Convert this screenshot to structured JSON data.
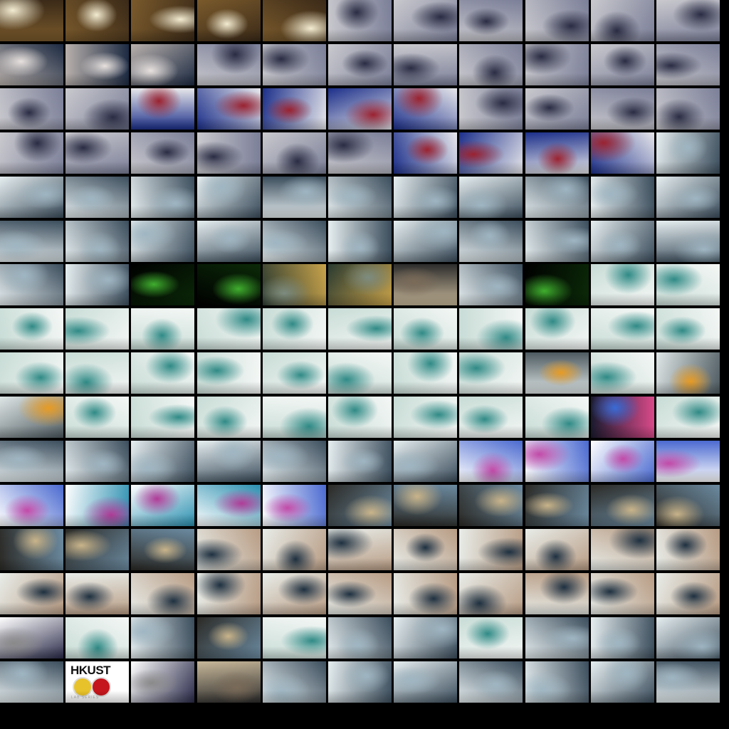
{
  "sheet": {
    "description_kind": "contact-sheet",
    "columns": 11,
    "rows": 16,
    "background": "#000000",
    "scene_colors": {
      "ceremony": [
        "#7a5a2c",
        "#f3ecd2",
        "#3b2a18"
      ],
      "model": [
        "#b8b0ac",
        "#e7e1de",
        "#1c2a42"
      ],
      "meeting": [
        "#c9c9ce",
        "#2a2c44",
        "#7b7f98"
      ],
      "blue": [
        "#1c2f8a",
        "#9a2230",
        "#e6e6ea"
      ],
      "lab": [
        "#e6eef0",
        "#9fb6c2",
        "#3b4d5c"
      ],
      "labteal": [
        "#c8dcd6",
        "#2f8a86",
        "#f4f7f5"
      ],
      "green": [
        "#000000",
        "#3fae2e",
        "#0b2a08"
      ],
      "machine": [
        "#2a3a30",
        "#7d8c80",
        "#c9a34a"
      ],
      "orange": [
        "#dfe6e6",
        "#e79b24",
        "#4d5a60"
      ],
      "screen": [
        "#1a1a2e",
        "#3a6bd6",
        "#d84a8a"
      ],
      "dish": [
        "#ffffff",
        "#c24aa8",
        "#4b6ad0"
      ],
      "flask": [
        "#ffffff",
        "#b03c98",
        "#2a8fb0"
      ],
      "glass": [
        "#2b2a26",
        "#c9b48a",
        "#6b8aa0"
      ],
      "students": [
        "#e8ece8",
        "#1e3040",
        "#b89c84"
      ],
      "white": [
        "#ffffff",
        "#8a8a8a",
        "#2a2a4a"
      ],
      "apparatus": [
        "#c8b89a",
        "#7a6a58",
        "#2c2c2c"
      ]
    },
    "rows_data": [
      [
        "ceremony",
        "ceremony",
        "ceremony",
        "ceremony",
        "ceremony",
        "meeting",
        "meeting",
        "meeting",
        "meeting",
        "meeting",
        "meeting"
      ],
      [
        "model",
        "model",
        "model",
        "meeting",
        "meeting",
        "meeting",
        "meeting",
        "meeting",
        "meeting",
        "meeting",
        "meeting"
      ],
      [
        "meeting",
        "meeting",
        "blue",
        "blue",
        "blue",
        "blue",
        "blue",
        "meeting",
        "meeting",
        "meeting",
        "meeting"
      ],
      [
        "meeting",
        "meeting",
        "meeting",
        "meeting",
        "meeting",
        "meeting",
        "blue",
        "blue",
        "blue",
        "blue",
        "lab"
      ],
      [
        "lab",
        "lab",
        "lab",
        "lab",
        "lab",
        "lab",
        "lab",
        "lab",
        "lab",
        "lab",
        "lab"
      ],
      [
        "lab",
        "lab",
        "lab",
        "lab",
        "lab",
        "lab",
        "lab",
        "lab",
        "lab",
        "lab",
        "lab"
      ],
      [
        "lab",
        "lab",
        "green",
        "green",
        "machine",
        "machine",
        "apparatus",
        "lab",
        "green",
        "labteal",
        "labteal"
      ],
      [
        "labteal",
        "labteal",
        "labteal",
        "labteal",
        "labteal",
        "labteal",
        "labteal",
        "labteal",
        "labteal",
        "labteal",
        "labteal"
      ],
      [
        "labteal",
        "labteal",
        "labteal",
        "labteal",
        "labteal",
        "labteal",
        "labteal",
        "labteal",
        "orange",
        "labteal",
        "orange"
      ],
      [
        "orange",
        "labteal",
        "labteal",
        "labteal",
        "labteal",
        "labteal",
        "labteal",
        "labteal",
        "labteal",
        "screen",
        "labteal"
      ],
      [
        "lab",
        "lab",
        "lab",
        "lab",
        "lab",
        "lab",
        "lab",
        "dish",
        "dish",
        "dish",
        "dish"
      ],
      [
        "dish",
        "flask",
        "flask",
        "flask",
        "dish",
        "glass",
        "glass",
        "glass",
        "glass",
        "glass",
        "glass"
      ],
      [
        "glass",
        "glass",
        "glass",
        "students",
        "students",
        "students",
        "students",
        "students",
        "students",
        "students",
        "students"
      ],
      [
        "students",
        "students",
        "students",
        "students",
        "students",
        "students",
        "students",
        "students",
        "students",
        "students",
        "students"
      ],
      [
        "white",
        "labteal",
        "lab",
        "glass",
        "labteal",
        "lab",
        "lab",
        "labteal",
        "lab",
        "lab",
        "lab"
      ],
      [
        "lab",
        "logo",
        "white",
        "apparatus",
        "lab",
        "lab",
        "lab",
        "lab",
        "lab",
        "lab",
        "lab"
      ]
    ],
    "logo_thumb": {
      "text": "HKUST",
      "caption": "LAB SERIES",
      "disc_colors": [
        "#e8c22a",
        "#c4161c"
      ]
    }
  }
}
